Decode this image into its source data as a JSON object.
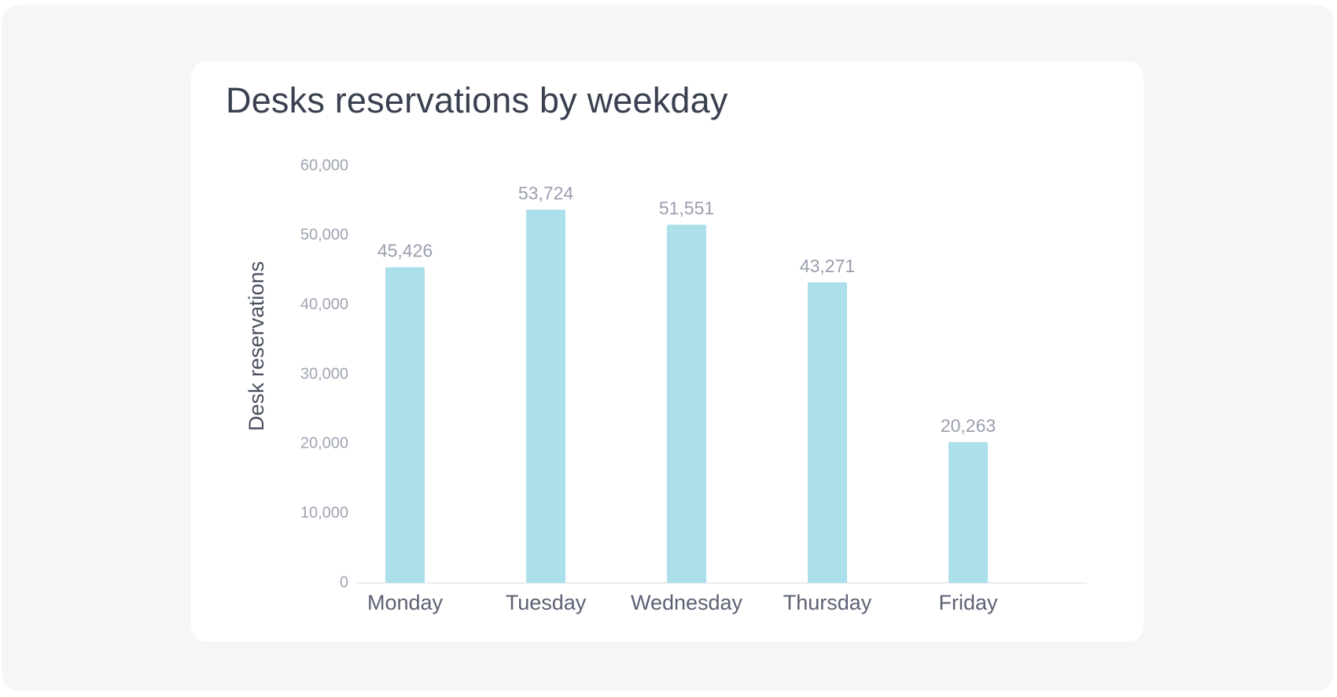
{
  "chart_data": {
    "type": "bar",
    "title": "Desks reservations by weekday",
    "xlabel": "",
    "ylabel": "Desk reservations",
    "categories": [
      "Monday",
      "Tuesday",
      "Wednesday",
      "Thursday",
      "Friday"
    ],
    "values": [
      45426,
      53724,
      51551,
      43271,
      20263
    ],
    "data_labels": [
      "45,426",
      "53,724",
      "51,551",
      "43,271",
      "20,263"
    ],
    "ylim": [
      0,
      60000
    ],
    "yticks": [
      0,
      10000,
      20000,
      30000,
      40000,
      50000,
      60000
    ],
    "ytick_labels": [
      "0",
      "10,000",
      "20,000",
      "30,000",
      "40,000",
      "50,000",
      "60,000"
    ],
    "grid": false,
    "bar_color": "#abdfea",
    "axis_color": "#e3e5ea"
  }
}
